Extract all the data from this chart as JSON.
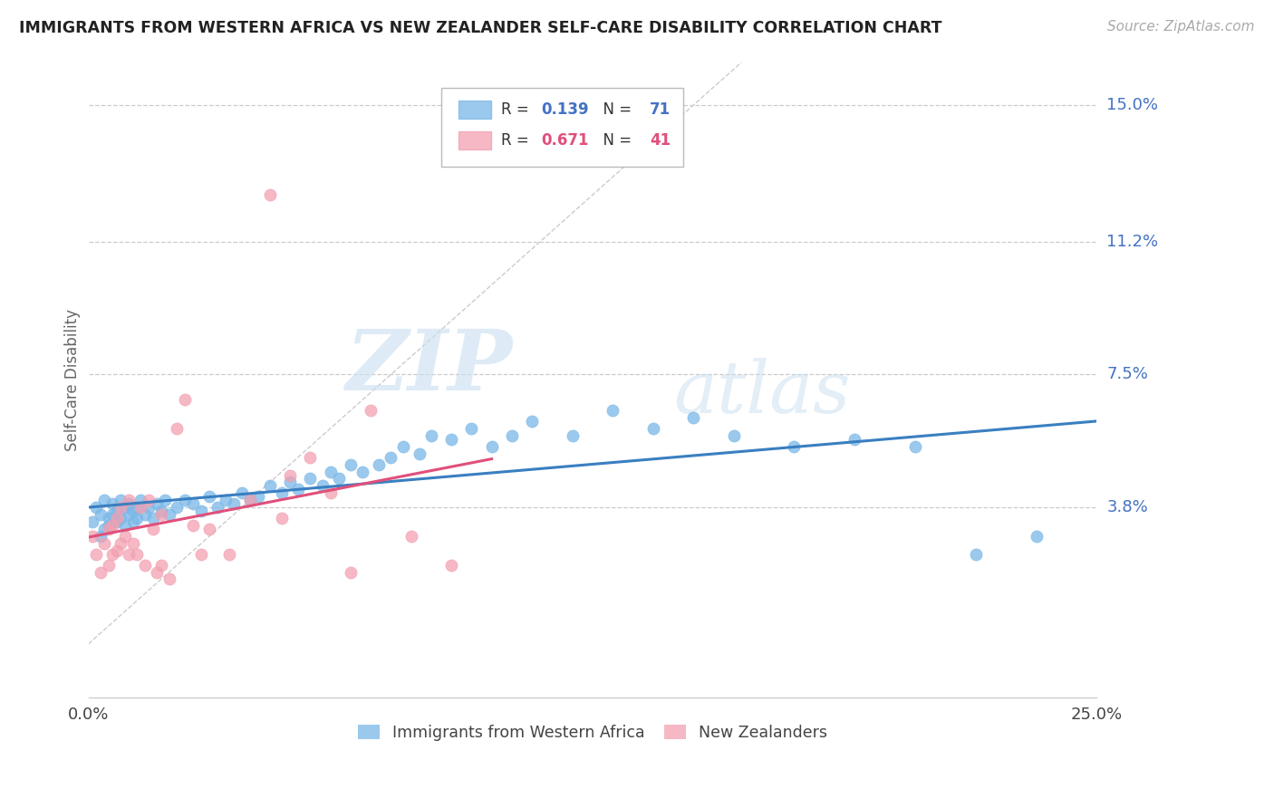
{
  "title": "IMMIGRANTS FROM WESTERN AFRICA VS NEW ZEALANDER SELF-CARE DISABILITY CORRELATION CHART",
  "source": "Source: ZipAtlas.com",
  "ylabel": "Self-Care Disability",
  "ytick_labels": [
    "15.0%",
    "11.2%",
    "7.5%",
    "3.8%"
  ],
  "ytick_vals": [
    0.15,
    0.112,
    0.075,
    0.038
  ],
  "xlim": [
    0.0,
    0.25
  ],
  "ylim": [
    -0.015,
    0.162
  ],
  "legend_label1": "Immigrants from Western Africa",
  "legend_label2": "New Zealanders",
  "blue_color": "#7ab8e8",
  "pink_color": "#f2a0b0",
  "blue_line_color": "#3a7fc1",
  "pink_line_color": "#e0507a",
  "diagonal_color": "#cccccc",
  "watermark_zip": "ZIP",
  "watermark_atlas": "atlas",
  "blue_r_val": "0.139",
  "blue_n_val": "71",
  "pink_r_val": "0.671",
  "pink_n_val": "41",
  "blue_scatter_x": [
    0.001,
    0.002,
    0.003,
    0.003,
    0.004,
    0.004,
    0.005,
    0.005,
    0.006,
    0.006,
    0.007,
    0.007,
    0.008,
    0.008,
    0.009,
    0.009,
    0.01,
    0.01,
    0.011,
    0.011,
    0.012,
    0.012,
    0.013,
    0.014,
    0.015,
    0.016,
    0.017,
    0.018,
    0.019,
    0.02,
    0.022,
    0.024,
    0.026,
    0.028,
    0.03,
    0.032,
    0.034,
    0.036,
    0.038,
    0.04,
    0.042,
    0.045,
    0.048,
    0.05,
    0.052,
    0.055,
    0.058,
    0.06,
    0.062,
    0.065,
    0.068,
    0.072,
    0.075,
    0.078,
    0.082,
    0.085,
    0.09,
    0.095,
    0.1,
    0.105,
    0.11,
    0.12,
    0.13,
    0.14,
    0.15,
    0.16,
    0.175,
    0.19,
    0.205,
    0.22,
    0.235
  ],
  "blue_scatter_y": [
    0.034,
    0.038,
    0.03,
    0.036,
    0.032,
    0.04,
    0.035,
    0.033,
    0.036,
    0.039,
    0.034,
    0.037,
    0.035,
    0.04,
    0.033,
    0.038,
    0.036,
    0.039,
    0.034,
    0.037,
    0.038,
    0.035,
    0.04,
    0.036,
    0.038,
    0.035,
    0.039,
    0.037,
    0.04,
    0.036,
    0.038,
    0.04,
    0.039,
    0.037,
    0.041,
    0.038,
    0.04,
    0.039,
    0.042,
    0.04,
    0.041,
    0.044,
    0.042,
    0.045,
    0.043,
    0.046,
    0.044,
    0.048,
    0.046,
    0.05,
    0.048,
    0.05,
    0.052,
    0.055,
    0.053,
    0.058,
    0.057,
    0.06,
    0.055,
    0.058,
    0.062,
    0.058,
    0.065,
    0.06,
    0.063,
    0.058,
    0.055,
    0.057,
    0.055,
    0.025,
    0.03
  ],
  "pink_scatter_x": [
    0.001,
    0.002,
    0.003,
    0.004,
    0.005,
    0.005,
    0.006,
    0.006,
    0.007,
    0.007,
    0.008,
    0.008,
    0.009,
    0.01,
    0.01,
    0.011,
    0.012,
    0.013,
    0.014,
    0.015,
    0.016,
    0.017,
    0.018,
    0.018,
    0.02,
    0.022,
    0.024,
    0.026,
    0.028,
    0.03,
    0.035,
    0.04,
    0.045,
    0.048,
    0.05,
    0.055,
    0.06,
    0.065,
    0.07,
    0.08,
    0.09
  ],
  "pink_scatter_y": [
    0.03,
    0.025,
    0.02,
    0.028,
    0.022,
    0.032,
    0.025,
    0.033,
    0.026,
    0.035,
    0.028,
    0.038,
    0.03,
    0.025,
    0.04,
    0.028,
    0.025,
    0.038,
    0.022,
    0.04,
    0.032,
    0.02,
    0.022,
    0.036,
    0.018,
    0.06,
    0.068,
    0.033,
    0.025,
    0.032,
    0.025,
    0.04,
    0.125,
    0.035,
    0.047,
    0.052,
    0.042,
    0.02,
    0.065,
    0.03,
    0.022
  ],
  "pink_line_x_start": 0.0,
  "pink_line_x_end": 0.1,
  "blue_line_x_start": 0.0,
  "blue_line_x_end": 0.25
}
